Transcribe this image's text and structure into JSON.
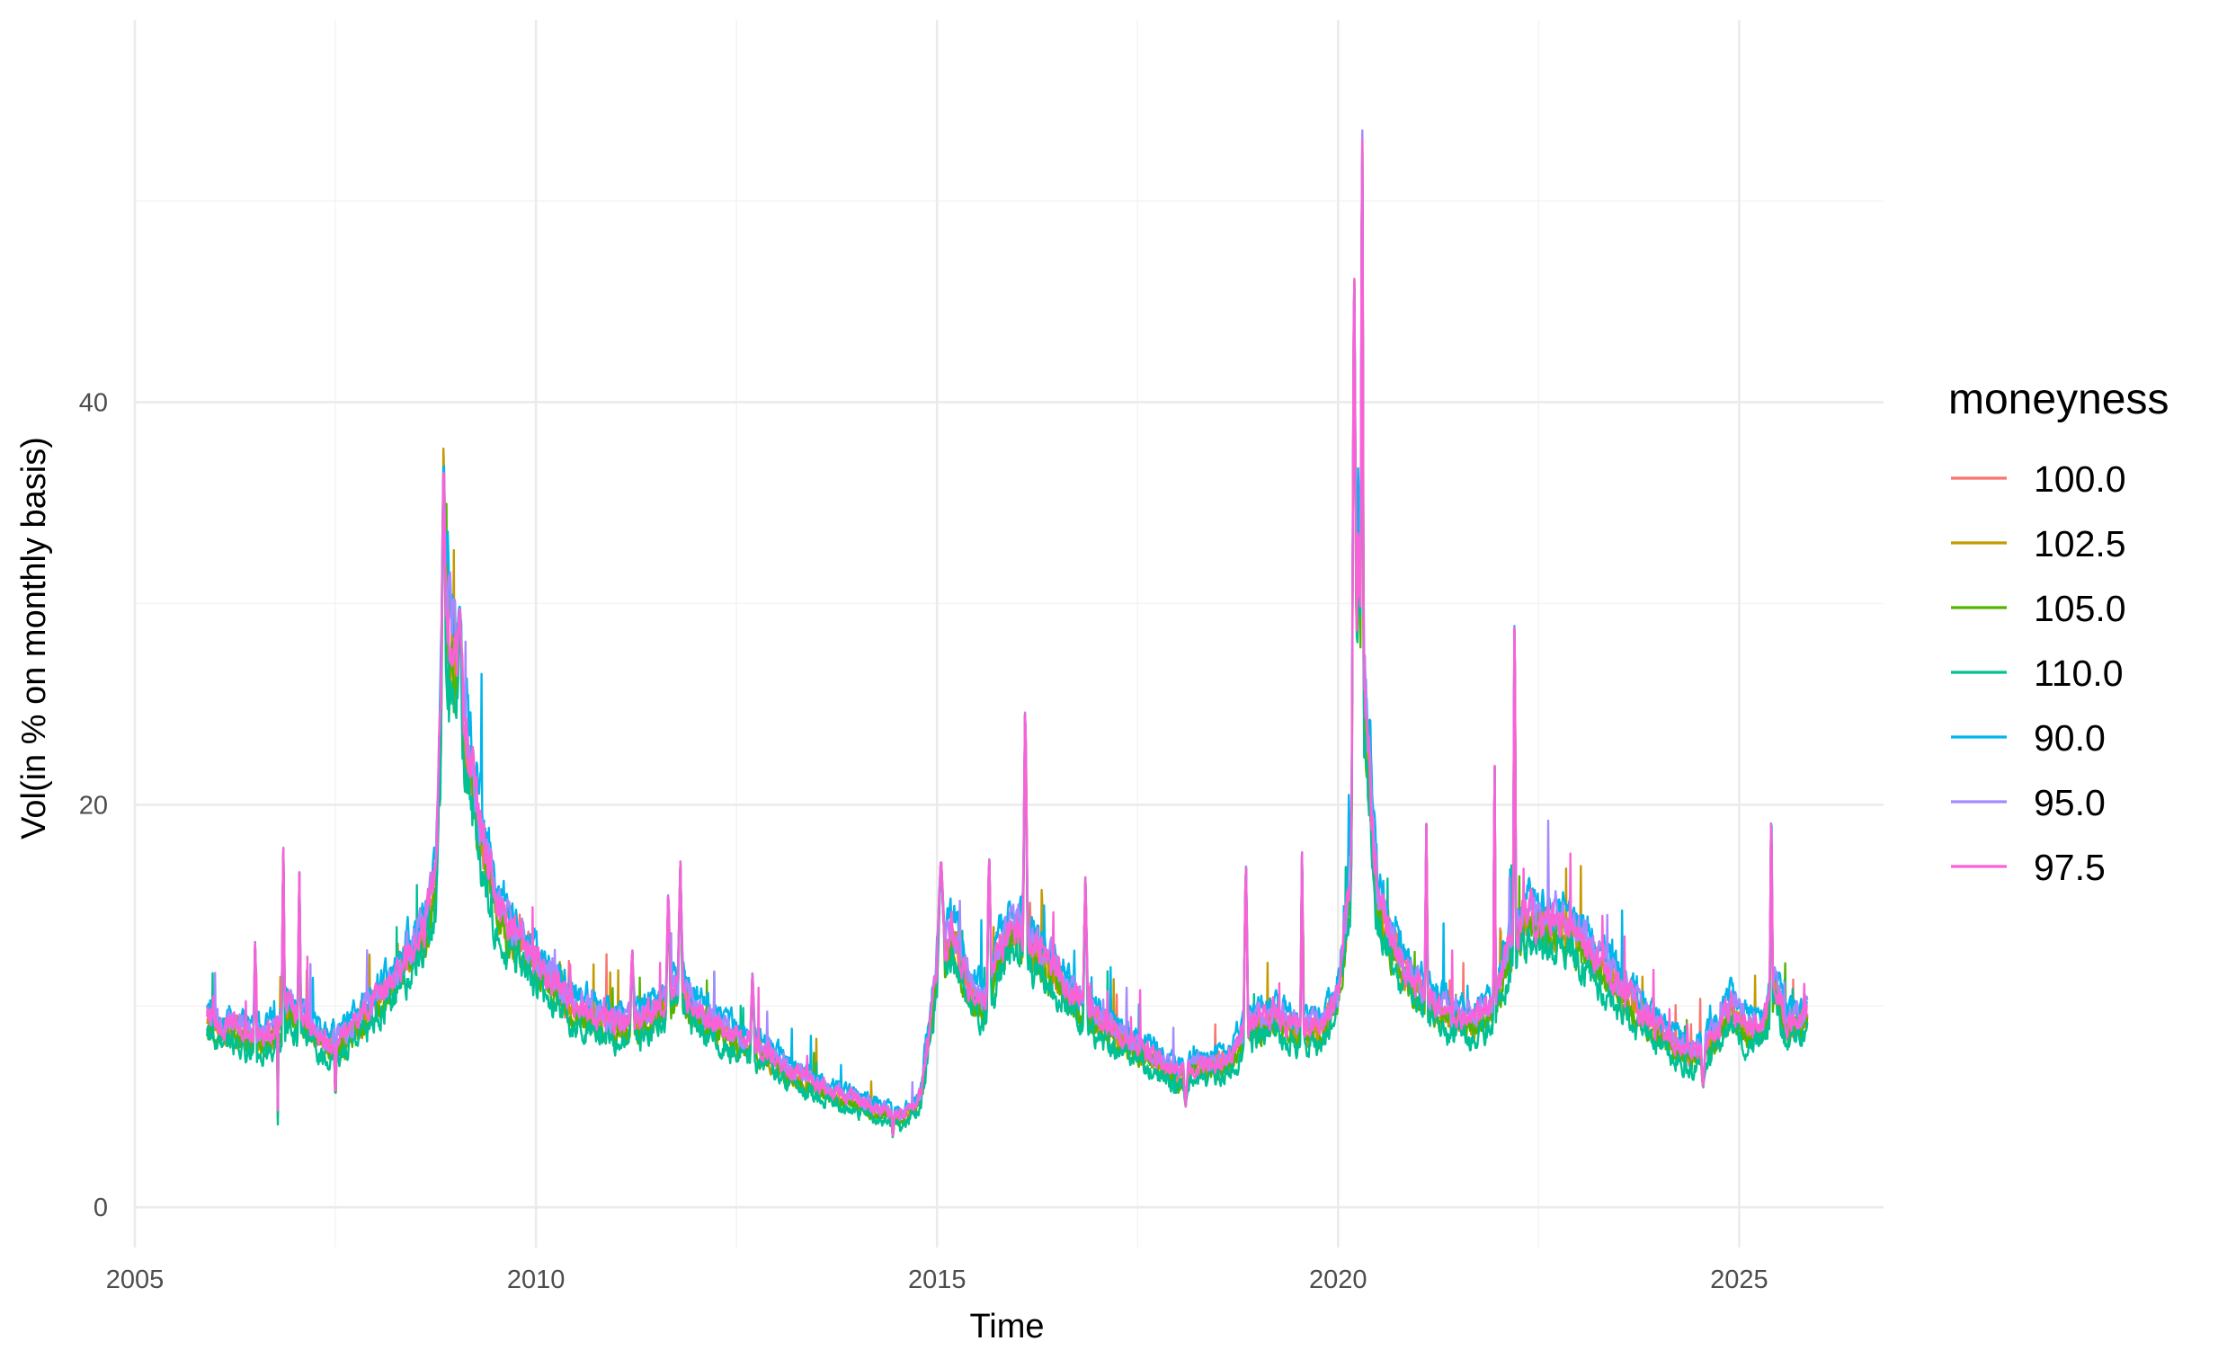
{
  "chart_data": {
    "type": "line",
    "xlabel": "Time",
    "ylabel": "Vol(in % on monthly basis)",
    "xlim": [
      2005.0,
      2026.8
    ],
    "ylim": [
      -2.0,
      59.0
    ],
    "x_ticks": [
      2005,
      2010,
      2015,
      2020,
      2025
    ],
    "y_ticks": [
      0,
      20,
      40
    ],
    "grid": true,
    "legend": {
      "title": "moneyness",
      "placement": "right",
      "entries": [
        "100.0",
        "102.5",
        "105.0",
        "110.0",
        "90.0",
        "95.0",
        "97.5"
      ]
    },
    "x_start": 2005.9,
    "x_end": 2025.85,
    "base_path": [
      [
        2005.9,
        9.6
      ],
      [
        2006.0,
        9.2
      ],
      [
        2006.3,
        8.8
      ],
      [
        2006.5,
        8.5
      ],
      [
        2006.6,
        8.4
      ],
      [
        2006.8,
        8.8
      ],
      [
        2006.9,
        10.0
      ],
      [
        2007.0,
        9.5
      ],
      [
        2007.2,
        9.0
      ],
      [
        2007.4,
        8.0
      ],
      [
        2007.6,
        8.4
      ],
      [
        2007.8,
        9.4
      ],
      [
        2008.0,
        10.2
      ],
      [
        2008.2,
        11.0
      ],
      [
        2008.4,
        12.5
      ],
      [
        2008.6,
        13.5
      ],
      [
        2008.75,
        16.0
      ],
      [
        2008.85,
        30.0
      ],
      [
        2008.95,
        28.0
      ],
      [
        2009.1,
        24.0
      ],
      [
        2009.3,
        19.0
      ],
      [
        2009.5,
        15.0
      ],
      [
        2009.7,
        13.8
      ],
      [
        2009.9,
        12.8
      ],
      [
        2010.1,
        11.6
      ],
      [
        2010.4,
        10.2
      ],
      [
        2010.7,
        9.6
      ],
      [
        2011.0,
        9.0
      ],
      [
        2011.3,
        9.3
      ],
      [
        2011.6,
        10.0
      ],
      [
        2011.8,
        11.0
      ],
      [
        2012.0,
        9.8
      ],
      [
        2012.3,
        8.8
      ],
      [
        2012.6,
        8.2
      ],
      [
        2012.9,
        7.6
      ],
      [
        2013.2,
        6.6
      ],
      [
        2013.5,
        6.1
      ],
      [
        2013.8,
        5.6
      ],
      [
        2014.1,
        5.1
      ],
      [
        2014.4,
        4.7
      ],
      [
        2014.6,
        4.5
      ],
      [
        2014.8,
        5.5
      ],
      [
        2015.0,
        12.0
      ],
      [
        2015.2,
        13.5
      ],
      [
        2015.4,
        11.0
      ],
      [
        2015.6,
        10.0
      ],
      [
        2015.8,
        13.0
      ],
      [
        2016.0,
        14.0
      ],
      [
        2016.2,
        13.0
      ],
      [
        2016.5,
        11.5
      ],
      [
        2016.8,
        10.0
      ],
      [
        2017.1,
        9.0
      ],
      [
        2017.4,
        8.2
      ],
      [
        2017.8,
        7.2
      ],
      [
        2018.0,
        6.5
      ],
      [
        2018.2,
        7.0
      ],
      [
        2018.6,
        7.2
      ],
      [
        2018.9,
        9.0
      ],
      [
        2019.2,
        9.5
      ],
      [
        2019.5,
        8.8
      ],
      [
        2019.8,
        9.0
      ],
      [
        2020.0,
        10.5
      ],
      [
        2020.15,
        16.0
      ],
      [
        2020.25,
        33.0
      ],
      [
        2020.35,
        24.0
      ],
      [
        2020.5,
        15.0
      ],
      [
        2020.8,
        12.0
      ],
      [
        2021.1,
        10.5
      ],
      [
        2021.4,
        9.5
      ],
      [
        2021.7,
        9.2
      ],
      [
        2021.95,
        10.0
      ],
      [
        2022.1,
        12.5
      ],
      [
        2022.3,
        14.5
      ],
      [
        2022.6,
        14.0
      ],
      [
        2022.9,
        13.8
      ],
      [
        2023.2,
        12.5
      ],
      [
        2023.5,
        11.0
      ],
      [
        2023.8,
        9.5
      ],
      [
        2024.1,
        8.5
      ],
      [
        2024.4,
        7.5
      ],
      [
        2024.7,
        8.5
      ],
      [
        2024.9,
        10.0
      ],
      [
        2025.1,
        8.8
      ],
      [
        2025.3,
        9.2
      ],
      [
        2025.45,
        11.0
      ],
      [
        2025.6,
        9.0
      ],
      [
        2025.85,
        9.5
      ]
    ],
    "spikes": [
      [
        2006.5,
        13.5,
        0.02
      ],
      [
        2006.78,
        0.8,
        0.005
      ],
      [
        2006.85,
        18.5,
        0.02
      ],
      [
        2007.05,
        17.0,
        0.02
      ],
      [
        2007.5,
        5.0,
        0.015
      ],
      [
        2008.85,
        37.5,
        0.03
      ],
      [
        2009.05,
        30.0,
        0.04
      ],
      [
        2011.2,
        13.0,
        0.03
      ],
      [
        2011.65,
        16.0,
        0.03
      ],
      [
        2011.8,
        17.3,
        0.03
      ],
      [
        2012.7,
        11.8,
        0.03
      ],
      [
        2014.45,
        3.4,
        0.02
      ],
      [
        2015.05,
        17.5,
        0.05
      ],
      [
        2015.65,
        17.8,
        0.03
      ],
      [
        2016.1,
        25.5,
        0.03
      ],
      [
        2016.85,
        16.5,
        0.03
      ],
      [
        2018.1,
        5.0,
        0.03
      ],
      [
        2018.85,
        17.5,
        0.03
      ],
      [
        2019.55,
        17.8,
        0.02
      ],
      [
        2020.2,
        48.0,
        0.03
      ],
      [
        2020.3,
        56.5,
        0.02
      ],
      [
        2021.1,
        19.2,
        0.02
      ],
      [
        2021.95,
        23.8,
        0.015
      ],
      [
        2022.2,
        30.8,
        0.02
      ],
      [
        2024.55,
        5.8,
        0.03
      ],
      [
        2025.4,
        20.3,
        0.02
      ]
    ],
    "series": [
      {
        "name": "100.0",
        "color": "#F8766D",
        "offset": 0.0,
        "seed": 11
      },
      {
        "name": "102.5",
        "color": "#C49A00",
        "offset": -0.25,
        "seed": 23
      },
      {
        "name": "105.0",
        "color": "#53B400",
        "offset": -0.5,
        "seed": 37
      },
      {
        "name": "110.0",
        "color": "#00C094",
        "offset": -0.9,
        "seed": 41
      },
      {
        "name": "90.0",
        "color": "#00B6EB",
        "offset": 0.7,
        "seed": 53
      },
      {
        "name": "95.0",
        "color": "#A58AFF",
        "offset": 0.3,
        "seed": 67
      },
      {
        "name": "97.5",
        "color": "#FB61D7",
        "offset": 0.1,
        "seed": 79
      }
    ]
  }
}
